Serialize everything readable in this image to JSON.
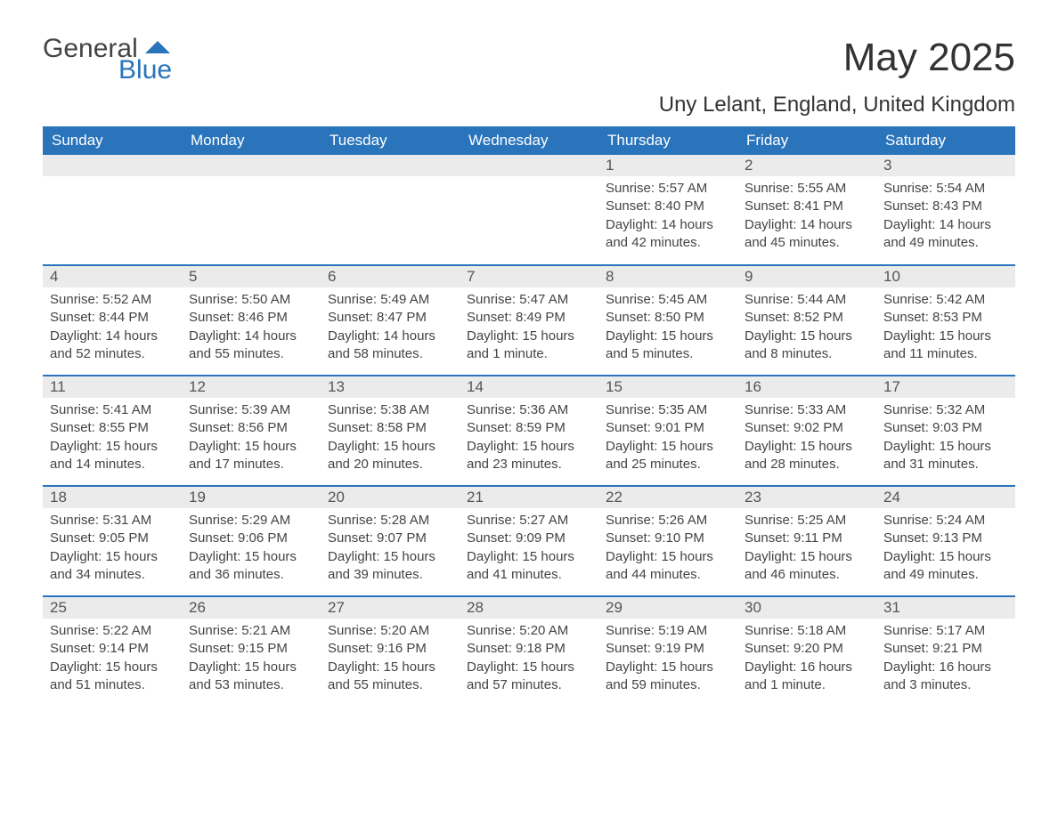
{
  "brand": {
    "word1": "General",
    "word2": "Blue"
  },
  "title": "May 2025",
  "location": "Uny Lelant, England, United Kingdom",
  "colors": {
    "brand_blue": "#2a74bb",
    "header_bg": "#2a74bb",
    "header_text": "#ffffff",
    "daynum_bg": "#ebebeb",
    "text": "#444444",
    "background": "#ffffff"
  },
  "weekdays": [
    "Sunday",
    "Monday",
    "Tuesday",
    "Wednesday",
    "Thursday",
    "Friday",
    "Saturday"
  ],
  "weeks": [
    [
      null,
      null,
      null,
      null,
      {
        "n": "1",
        "sunrise": "Sunrise: 5:57 AM",
        "sunset": "Sunset: 8:40 PM",
        "daylight": "Daylight: 14 hours and 42 minutes."
      },
      {
        "n": "2",
        "sunrise": "Sunrise: 5:55 AM",
        "sunset": "Sunset: 8:41 PM",
        "daylight": "Daylight: 14 hours and 45 minutes."
      },
      {
        "n": "3",
        "sunrise": "Sunrise: 5:54 AM",
        "sunset": "Sunset: 8:43 PM",
        "daylight": "Daylight: 14 hours and 49 minutes."
      }
    ],
    [
      {
        "n": "4",
        "sunrise": "Sunrise: 5:52 AM",
        "sunset": "Sunset: 8:44 PM",
        "daylight": "Daylight: 14 hours and 52 minutes."
      },
      {
        "n": "5",
        "sunrise": "Sunrise: 5:50 AM",
        "sunset": "Sunset: 8:46 PM",
        "daylight": "Daylight: 14 hours and 55 minutes."
      },
      {
        "n": "6",
        "sunrise": "Sunrise: 5:49 AM",
        "sunset": "Sunset: 8:47 PM",
        "daylight": "Daylight: 14 hours and 58 minutes."
      },
      {
        "n": "7",
        "sunrise": "Sunrise: 5:47 AM",
        "sunset": "Sunset: 8:49 PM",
        "daylight": "Daylight: 15 hours and 1 minute."
      },
      {
        "n": "8",
        "sunrise": "Sunrise: 5:45 AM",
        "sunset": "Sunset: 8:50 PM",
        "daylight": "Daylight: 15 hours and 5 minutes."
      },
      {
        "n": "9",
        "sunrise": "Sunrise: 5:44 AM",
        "sunset": "Sunset: 8:52 PM",
        "daylight": "Daylight: 15 hours and 8 minutes."
      },
      {
        "n": "10",
        "sunrise": "Sunrise: 5:42 AM",
        "sunset": "Sunset: 8:53 PM",
        "daylight": "Daylight: 15 hours and 11 minutes."
      }
    ],
    [
      {
        "n": "11",
        "sunrise": "Sunrise: 5:41 AM",
        "sunset": "Sunset: 8:55 PM",
        "daylight": "Daylight: 15 hours and 14 minutes."
      },
      {
        "n": "12",
        "sunrise": "Sunrise: 5:39 AM",
        "sunset": "Sunset: 8:56 PM",
        "daylight": "Daylight: 15 hours and 17 minutes."
      },
      {
        "n": "13",
        "sunrise": "Sunrise: 5:38 AM",
        "sunset": "Sunset: 8:58 PM",
        "daylight": "Daylight: 15 hours and 20 minutes."
      },
      {
        "n": "14",
        "sunrise": "Sunrise: 5:36 AM",
        "sunset": "Sunset: 8:59 PM",
        "daylight": "Daylight: 15 hours and 23 minutes."
      },
      {
        "n": "15",
        "sunrise": "Sunrise: 5:35 AM",
        "sunset": "Sunset: 9:01 PM",
        "daylight": "Daylight: 15 hours and 25 minutes."
      },
      {
        "n": "16",
        "sunrise": "Sunrise: 5:33 AM",
        "sunset": "Sunset: 9:02 PM",
        "daylight": "Daylight: 15 hours and 28 minutes."
      },
      {
        "n": "17",
        "sunrise": "Sunrise: 5:32 AM",
        "sunset": "Sunset: 9:03 PM",
        "daylight": "Daylight: 15 hours and 31 minutes."
      }
    ],
    [
      {
        "n": "18",
        "sunrise": "Sunrise: 5:31 AM",
        "sunset": "Sunset: 9:05 PM",
        "daylight": "Daylight: 15 hours and 34 minutes."
      },
      {
        "n": "19",
        "sunrise": "Sunrise: 5:29 AM",
        "sunset": "Sunset: 9:06 PM",
        "daylight": "Daylight: 15 hours and 36 minutes."
      },
      {
        "n": "20",
        "sunrise": "Sunrise: 5:28 AM",
        "sunset": "Sunset: 9:07 PM",
        "daylight": "Daylight: 15 hours and 39 minutes."
      },
      {
        "n": "21",
        "sunrise": "Sunrise: 5:27 AM",
        "sunset": "Sunset: 9:09 PM",
        "daylight": "Daylight: 15 hours and 41 minutes."
      },
      {
        "n": "22",
        "sunrise": "Sunrise: 5:26 AM",
        "sunset": "Sunset: 9:10 PM",
        "daylight": "Daylight: 15 hours and 44 minutes."
      },
      {
        "n": "23",
        "sunrise": "Sunrise: 5:25 AM",
        "sunset": "Sunset: 9:11 PM",
        "daylight": "Daylight: 15 hours and 46 minutes."
      },
      {
        "n": "24",
        "sunrise": "Sunrise: 5:24 AM",
        "sunset": "Sunset: 9:13 PM",
        "daylight": "Daylight: 15 hours and 49 minutes."
      }
    ],
    [
      {
        "n": "25",
        "sunrise": "Sunrise: 5:22 AM",
        "sunset": "Sunset: 9:14 PM",
        "daylight": "Daylight: 15 hours and 51 minutes."
      },
      {
        "n": "26",
        "sunrise": "Sunrise: 5:21 AM",
        "sunset": "Sunset: 9:15 PM",
        "daylight": "Daylight: 15 hours and 53 minutes."
      },
      {
        "n": "27",
        "sunrise": "Sunrise: 5:20 AM",
        "sunset": "Sunset: 9:16 PM",
        "daylight": "Daylight: 15 hours and 55 minutes."
      },
      {
        "n": "28",
        "sunrise": "Sunrise: 5:20 AM",
        "sunset": "Sunset: 9:18 PM",
        "daylight": "Daylight: 15 hours and 57 minutes."
      },
      {
        "n": "29",
        "sunrise": "Sunrise: 5:19 AM",
        "sunset": "Sunset: 9:19 PM",
        "daylight": "Daylight: 15 hours and 59 minutes."
      },
      {
        "n": "30",
        "sunrise": "Sunrise: 5:18 AM",
        "sunset": "Sunset: 9:20 PM",
        "daylight": "Daylight: 16 hours and 1 minute."
      },
      {
        "n": "31",
        "sunrise": "Sunrise: 5:17 AM",
        "sunset": "Sunset: 9:21 PM",
        "daylight": "Daylight: 16 hours and 3 minutes."
      }
    ]
  ]
}
